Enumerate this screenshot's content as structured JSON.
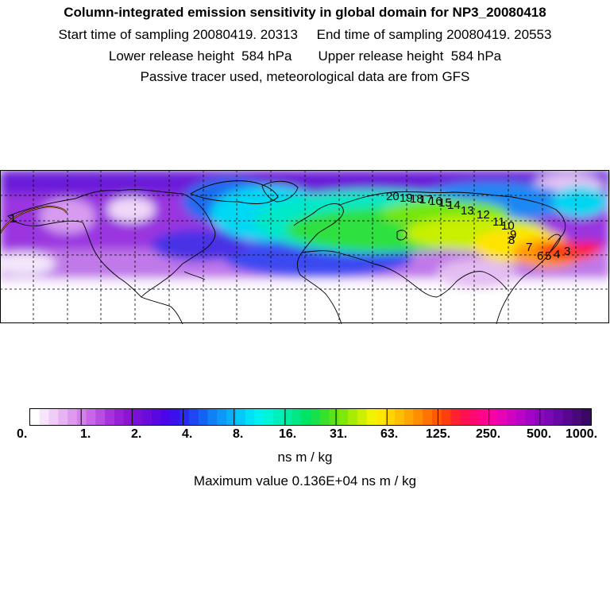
{
  "header": {
    "title": "Column-integrated emission sensitivity in global domain for NP3_20080418",
    "line2": "Start time of sampling 20080419. 20313     End time of sampling 20080419. 20553",
    "line3": "Lower release height  584 hPa       Upper release height  584 hPa",
    "line4": "Passive tracer used, meteorological data are from GFS"
  },
  "colorbar": {
    "ticks": [
      "0.",
      "1.",
      "2.",
      "4.",
      "8.",
      "16.",
      "31.",
      "63.",
      "125.",
      "250.",
      "500.",
      "1000."
    ],
    "units": "ns m / kg",
    "colors": [
      "#ffffff",
      "#f7e6fb",
      "#f0ccf7",
      "#e8b3f3",
      "#df99ef",
      "#d47feb",
      "#c766e6",
      "#b84de2",
      "#a833dd",
      "#9821d8",
      "#8a14d0",
      "#7a10d6",
      "#6a0cdc",
      "#5a08e2",
      "#4a06e8",
      "#3b10ec",
      "#2c2af0",
      "#1e46f2",
      "#1464f4",
      "#0f80f6",
      "#0b98f7",
      "#07b0f8",
      "#04c8f8",
      "#00e0f6",
      "#00f2f0",
      "#00f4d8",
      "#00f0bd",
      "#00eca0",
      "#00e884",
      "#00e466",
      "#18e04a",
      "#38e02e",
      "#5ae418",
      "#7ee80a",
      "#a6ec04",
      "#ccf000",
      "#f0f400",
      "#ffe800",
      "#ffd400",
      "#ffbe00",
      "#ffa600",
      "#ff8e00",
      "#ff7400",
      "#ff5a00",
      "#ff3e10",
      "#ff2030",
      "#ff1050",
      "#ff0870",
      "#ff068c",
      "#f804a4",
      "#e604b4",
      "#d004c0",
      "#ba04c6",
      "#a404c6",
      "#8e06c0",
      "#7a08b4",
      "#6808a4",
      "#580890",
      "#48087a",
      "#380864"
    ]
  },
  "max_value_text": "Maximum value  0.136E+04 ns m / kg",
  "trajectory_labels": [
    "20",
    "19",
    "18",
    "17",
    "16",
    "15",
    "14",
    "13",
    "12",
    "11",
    "10",
    "9",
    "8",
    "7",
    "6",
    "5",
    "4",
    "3",
    "1"
  ],
  "map_colors": {
    "background_white": "#ffffff",
    "coast": "#000000",
    "grid": "#000000"
  }
}
